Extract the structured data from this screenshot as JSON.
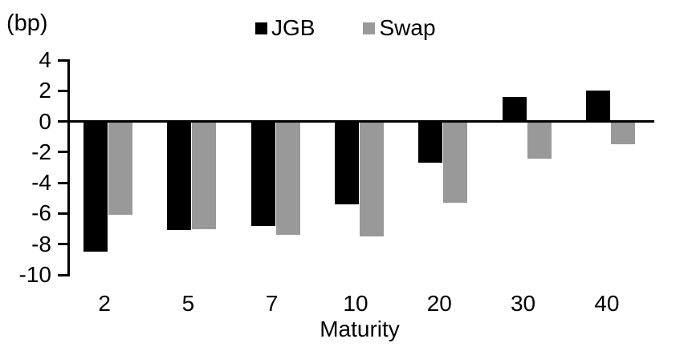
{
  "chart_data": {
    "type": "bar",
    "title": "",
    "unit_label": "(bp)",
    "xlabel": "Maturity",
    "categories": [
      "2",
      "5",
      "7",
      "10",
      "20",
      "30",
      "40"
    ],
    "series": [
      {
        "name": "JGB",
        "color": "#000000",
        "values": [
          -8.5,
          -7.1,
          -6.8,
          -5.4,
          -2.7,
          1.6,
          2.0
        ]
      },
      {
        "name": "Swap",
        "color": "#999999",
        "values": [
          -6.1,
          -7.0,
          -7.4,
          -7.5,
          -5.3,
          -2.4,
          -1.5
        ]
      }
    ],
    "ylim": [
      -10,
      4
    ],
    "yticks": [
      4,
      2,
      0,
      -2,
      -4,
      -6,
      -8,
      -10
    ],
    "legend_position": "top-center",
    "grid": false,
    "background_color": "#ffffff",
    "axis_color": "#000000"
  }
}
